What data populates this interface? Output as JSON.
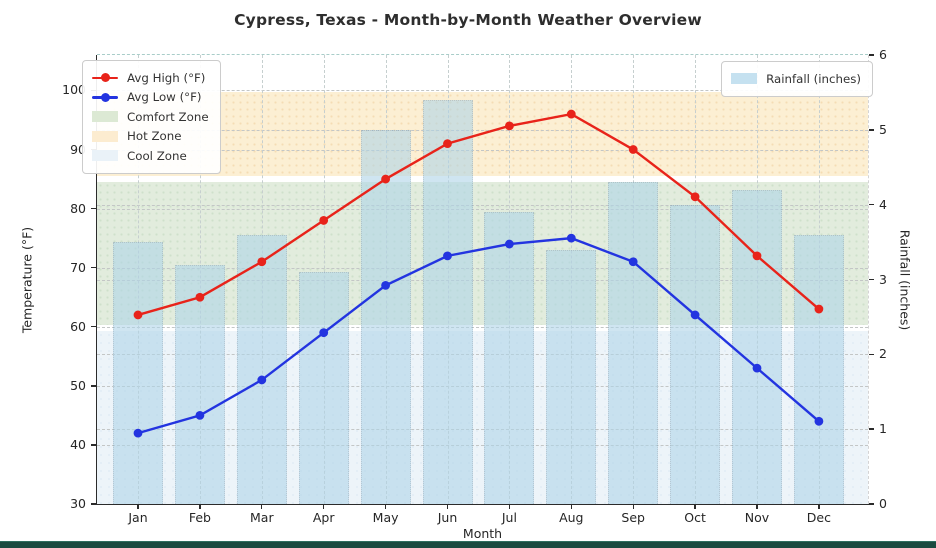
{
  "chart_data": {
    "type": "line+bar combo",
    "title": "Cypress, Texas - Month-by-Month Weather Overview",
    "xlabel": "Month",
    "ylabel_left": "Temperature (°F)",
    "ylabel_right": "Rainfall (inches)",
    "categories": [
      "Jan",
      "Feb",
      "Mar",
      "Apr",
      "May",
      "Jun",
      "Jul",
      "Aug",
      "Sep",
      "Oct",
      "Nov",
      "Dec"
    ],
    "series": [
      {
        "name": "Avg High (°F)",
        "type": "line",
        "axis": "left",
        "color": "#e8231a",
        "values": [
          62,
          65,
          71,
          78,
          85,
          91,
          94,
          96,
          90,
          82,
          72,
          63
        ]
      },
      {
        "name": "Avg Low (°F)",
        "type": "line",
        "axis": "left",
        "color": "#2334e0",
        "values": [
          42,
          45,
          51,
          59,
          67,
          72,
          74,
          75,
          71,
          62,
          53,
          44
        ]
      },
      {
        "name": "Rainfall (inches)",
        "type": "bar",
        "axis": "right",
        "color": "#aed4e8",
        "values": [
          3.5,
          3.2,
          3.6,
          3.1,
          5.0,
          5.4,
          3.9,
          3.4,
          4.3,
          4.0,
          4.2,
          3.6
        ]
      }
    ],
    "zones": [
      {
        "key": "hot",
        "label": "Hot Zone",
        "from": 85,
        "to": 100,
        "color": "#fcefd3"
      },
      {
        "key": "comfort",
        "label": "Comfort Zone",
        "from": 60,
        "to": 85,
        "color": "#e2ecdd"
      },
      {
        "key": "cool",
        "label": "Cool Zone",
        "from": 30,
        "to": 60,
        "color": "#edf4f9"
      }
    ],
    "axes": {
      "left": {
        "min": 30,
        "max": 106,
        "ticks": [
          30,
          40,
          50,
          60,
          70,
          80,
          90,
          100
        ]
      },
      "right": {
        "min": 0,
        "max": 6,
        "ticks": [
          0,
          1,
          2,
          3,
          4,
          5,
          6
        ]
      }
    },
    "grid": true,
    "legend_left": {
      "entries": [
        {
          "type": "line",
          "label": "Avg High (°F)",
          "color": "#e8231a"
        },
        {
          "type": "line",
          "label": "Avg Low (°F)",
          "color": "#2334e0"
        },
        {
          "type": "patch",
          "label": "Comfort Zone",
          "color": "#dce9d4"
        },
        {
          "type": "patch",
          "label": "Hot Zone",
          "color": "#fcecd0"
        },
        {
          "type": "patch",
          "label": "Cool Zone",
          "color": "#eaf2f8"
        }
      ]
    },
    "legend_right": {
      "entries": [
        {
          "type": "patch",
          "label": "Rainfall (inches)",
          "color": "#c5e1f0"
        }
      ]
    }
  }
}
